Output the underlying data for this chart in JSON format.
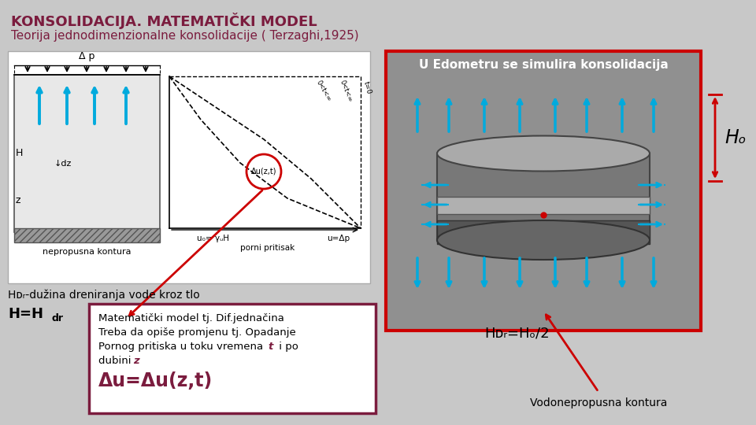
{
  "bg_color": "#c8c8c8",
  "title": "KONSOLIDACIJA. MATEMATIČKI MODEL",
  "title_color": "#7b1c3e",
  "subtitle": "Teorija jednodimenzionalne konsolidacije ( Terzaghi,1925)",
  "subtitle_color": "#7b1c3e",
  "edometer_label": "U Edometru se simulira konsolidacija",
  "edometer_label_color": "#ffffff",
  "edometer_box_color": "#cc0000",
  "Ho_label": "Hₒ",
  "vodo_label": "Vodonepropusna kontura",
  "Hdr_text": "Hᴅᵣ-dužina dreniranja vode kroz tlo",
  "box_text_line1": "Matematički model tj. Dif.jednačina",
  "box_text_line2": "Treba da opiše promjenu tj. Opadanje",
  "box_text_line3": "Pornog pritiska u toku vremena ",
  "box_text_t": "t",
  "box_text_line3b": " i po",
  "box_text_line4a": "dubini ",
  "box_text_z": "z",
  "formula_big": "Δu=Δu(z,t)",
  "formula_color": "#7b1c3e",
  "box_border_color": "#7b1c3e",
  "arrow_color": "#cc0000",
  "cyan_arrow_color": "#00aadd"
}
